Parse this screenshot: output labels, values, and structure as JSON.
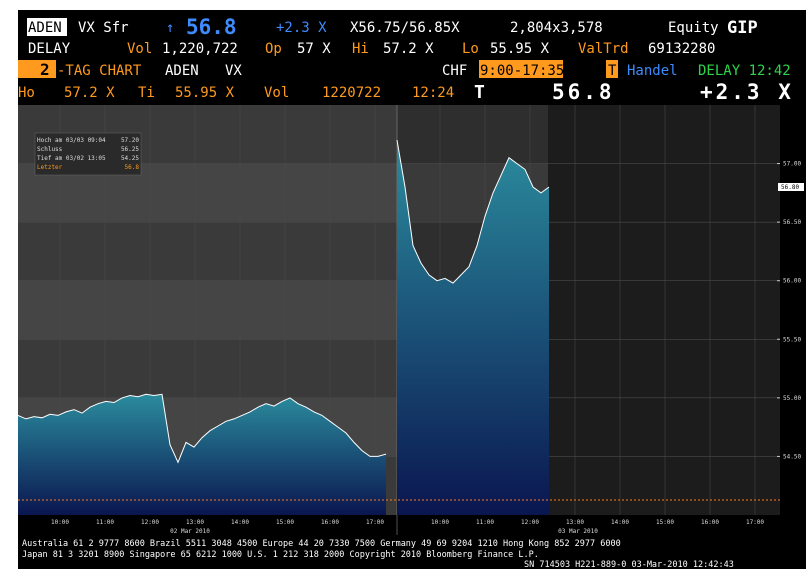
{
  "header": {
    "r1": [
      "ADEN",
      "VX Sfr",
      "↑",
      "56.8",
      "+2.3 X",
      "X56.75/56.85X",
      "2,804x3,578",
      "Equity",
      "GIP"
    ],
    "r2": [
      "DELAY",
      "Vol",
      "1,220,722",
      "Op",
      "57 X",
      "Hi",
      "57.2 X",
      "Lo",
      "55.95 X",
      "ValTrd",
      "69132280"
    ],
    "r3": [
      "2",
      "-TAG CHART",
      "ADEN",
      "VX",
      "CHF",
      "9:00-17:35",
      "T",
      "Handel",
      "DELAY 12:42"
    ],
    "r4": [
      "Ho",
      "57.2 X",
      "Ti",
      "55.95 X",
      "Vol",
      "1220722",
      "12:24",
      "T",
      "56.8",
      "+2.3 X"
    ]
  },
  "inset": [
    [
      "Hoch am 03/03 09:04",
      "57.20"
    ],
    [
      "Schluss",
      "56.25"
    ],
    [
      "Tief am 03/02 13:05",
      "54.25"
    ],
    [
      "Letzter",
      "56.8"
    ]
  ],
  "chart_data": {
    "type": "area",
    "ylim": [
      54.0,
      57.5
    ],
    "yticks": [
      {
        "value": 54.5,
        "label": "54.50"
      },
      {
        "value": 55.0,
        "label": "55.00"
      },
      {
        "value": 55.5,
        "label": "55.50"
      },
      {
        "value": 56.0,
        "label": "56.00"
      },
      {
        "value": 56.5,
        "label": "56.50"
      },
      {
        "value": 57.0,
        "label": "57.00"
      }
    ],
    "last_price": {
      "value": 56.8,
      "label": "56.80"
    },
    "xtick_labels": [
      "10:00",
      "11:00",
      "12:00",
      "13:00",
      "14:00",
      "15:00",
      "16:00",
      "17:00",
      "10:00",
      "11:00",
      "12:00",
      "13:00",
      "14:00",
      "15:00",
      "16:00",
      "17:00"
    ],
    "date_labels": [
      "02 Mar 2010",
      "03 Mar 2010"
    ],
    "grid": true,
    "series": [
      {
        "color": "#2b8c9e",
        "values": [
          54.85,
          54.82,
          54.84,
          54.83,
          54.86,
          54.85,
          54.88,
          54.9,
          54.87,
          54.92,
          54.95,
          54.97,
          54.96,
          55.0,
          55.02,
          55.01,
          55.03,
          55.02,
          55.03,
          54.6,
          54.45,
          54.62,
          54.58,
          54.66,
          54.72,
          54.76,
          54.8,
          54.82,
          54.85,
          54.88,
          54.92,
          54.95,
          54.93,
          54.97,
          55.0,
          54.95,
          54.92,
          54.88,
          54.85,
          54.8,
          54.75,
          54.7,
          54.62,
          54.55,
          54.5,
          54.5,
          54.52
        ]
      },
      {
        "color": "#2b8c9e",
        "values": [
          57.2,
          56.8,
          56.3,
          56.15,
          56.05,
          56.0,
          56.02,
          55.98,
          56.05,
          56.12,
          56.3,
          56.55,
          56.75,
          56.9,
          57.05,
          57.0,
          56.95,
          56.8,
          56.75,
          56.8
        ]
      }
    ]
  },
  "footer": [
    "Australia 61 2 9777 8600 Brazil 5511 3048 4500 Europe 44 20 7330 7500 Germany 49 69 9204 1210 Hong Kong 852 2977 6000",
    "Japan 81 3 3201 8900      Singapore 65 6212 1000      U.S. 1 212 318 2000      Copyright 2010 Bloomberg Finance L.P.",
    "SN 714503 H221-889-0 03-Mar-2010 12:42:43"
  ]
}
